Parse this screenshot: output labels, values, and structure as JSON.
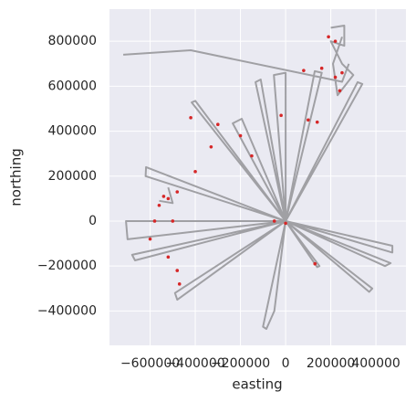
{
  "chart_data": {
    "type": "line",
    "xlabel": "easting",
    "ylabel": "northing",
    "xlim": [
      -780000,
      533000
    ],
    "ylim": [
      -553000,
      943000
    ],
    "xticks": [
      {
        "value": -600000,
        "label": "−600000"
      },
      {
        "value": -400000,
        "label": "−400000"
      },
      {
        "value": -200000,
        "label": "−200000"
      },
      0,
      200000,
      400000
    ],
    "yticks": [
      {
        "value": -400000,
        "label": "−400000"
      },
      {
        "value": -200000,
        "label": "−200000"
      },
      0,
      200000,
      400000,
      600000,
      800000
    ],
    "grid": true,
    "background": "#eaeaf2",
    "series": [
      {
        "type": "line",
        "color": "#a0a0a4",
        "x": [
          0,
          473000,
          473000,
          0,
          465000,
          440000,
          0,
          384000,
          370000,
          0,
          150000,
          140000,
          0,
          -50000,
          -85000,
          -100000,
          0,
          -480000,
          -490000,
          0,
          -667000,
          -680000,
          0,
          -700000,
          -707000,
          -600000,
          0,
          -620000,
          -618000,
          0,
          -416000,
          -400000,
          0,
          -234000,
          -194000,
          0,
          -133000,
          -110000,
          0,
          -52000,
          0,
          0,
          129000,
          160000,
          0,
          319000,
          340000,
          0,
          -600000,
          null,
          -719000,
          -420000,
          250000,
          280000,
          null,
          200000,
          260000,
          260000,
          200000,
          250000,
          300000,
          230000,
          210000,
          250000,
          null,
          -560000,
          -500000,
          -520000
        ],
        "y": [
          0,
          -110000,
          -140000,
          0,
          -187000,
          -200000,
          0,
          -300000,
          -315000,
          0,
          -200000,
          -205000,
          0,
          -400000,
          -480000,
          -470000,
          0,
          -350000,
          -320000,
          0,
          -175000,
          -150000,
          0,
          -81000,
          0,
          0,
          0,
          200000,
          240000,
          0,
          528000,
          535000,
          0,
          435000,
          455000,
          0,
          618000,
          630000,
          0,
          650000,
          660000,
          0,
          667000,
          660000,
          0,
          618000,
          610000,
          0,
          0,
          null,
          740000,
          760000,
          620000,
          700000,
          null,
          860000,
          870000,
          780000,
          800000,
          700000,
          650000,
          560000,
          700000,
          820000,
          null,
          90000,
          80000,
          150000
        ]
      },
      {
        "type": "scatter",
        "color": "#d62728",
        "x": [
          -560000,
          -540000,
          -520000,
          -480000,
          -500000,
          -580000,
          -600000,
          -520000,
          -480000,
          -470000,
          -400000,
          -330000,
          -200000,
          -420000,
          -300000,
          -150000,
          220000,
          240000,
          250000,
          220000,
          190000,
          100000,
          -20000,
          140000,
          -50000,
          0,
          130000,
          80000,
          160000
        ],
        "y": [
          70000,
          110000,
          100000,
          130000,
          0,
          0,
          -80000,
          -160000,
          -220000,
          -280000,
          220000,
          330000,
          380000,
          460000,
          430000,
          290000,
          640000,
          580000,
          660000,
          800000,
          820000,
          450000,
          470000,
          440000,
          0,
          -10000,
          -190000,
          670000,
          680000
        ]
      }
    ]
  }
}
